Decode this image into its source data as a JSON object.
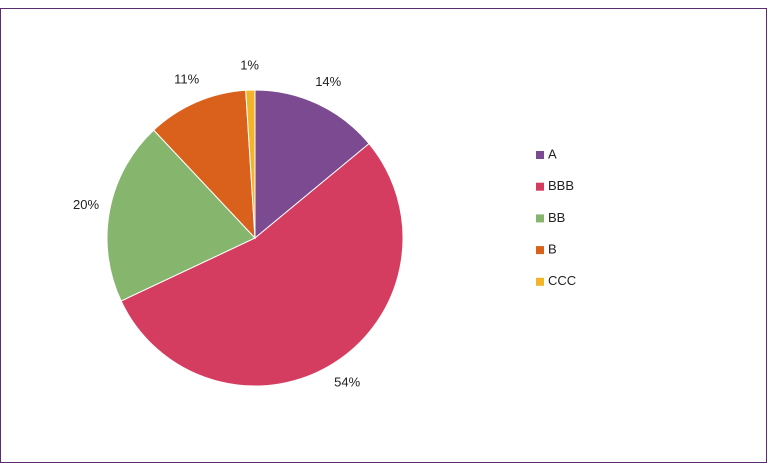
{
  "chart_data": {
    "type": "pie",
    "categories": [
      "A",
      "BBB",
      "BB",
      "B",
      "CCC"
    ],
    "values": [
      14,
      54,
      20,
      11,
      1
    ],
    "value_labels": [
      "14%",
      "54%",
      "20%",
      "11%",
      "1%"
    ],
    "colors": [
      "#7b4a91",
      "#d53d60",
      "#86b56e",
      "#d9611c",
      "#f2b52a"
    ],
    "legend": "right"
  }
}
